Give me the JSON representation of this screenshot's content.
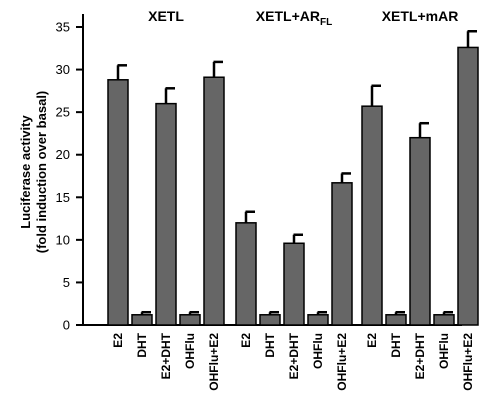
{
  "chart_data": {
    "type": "bar",
    "ylabel_line1": "Luciferase activity",
    "ylabel_line2": "(fold induction over basal)",
    "ylim": [
      0,
      35
    ],
    "yticks": [
      0,
      5,
      10,
      15,
      20,
      25,
      30,
      35
    ],
    "groups": [
      {
        "title": "XETL",
        "categories": [
          "E2",
          "DHT",
          "E2+DHT",
          "OHFlu",
          "OHFlu+E2"
        ],
        "values": [
          28.8,
          1.2,
          26.0,
          1.2,
          29.1
        ],
        "errors": [
          1.7,
          0.3,
          1.8,
          0.3,
          1.8
        ]
      },
      {
        "title": "XETL+AR",
        "title_sub": "FL",
        "categories": [
          "E2",
          "DHT",
          "E2+DHT",
          "OHFlu",
          "OHFlu+E2"
        ],
        "values": [
          12.0,
          1.2,
          9.6,
          1.2,
          16.7
        ],
        "errors": [
          1.3,
          0.3,
          1.0,
          0.3,
          1.1
        ]
      },
      {
        "title": "XETL+mAR",
        "categories": [
          "E2",
          "DHT",
          "E2+DHT",
          "OHFlu",
          "OHFlu+E2"
        ],
        "values": [
          25.7,
          1.2,
          22.0,
          1.2,
          32.6
        ],
        "errors": [
          2.4,
          0.3,
          1.7,
          0.3,
          1.9
        ]
      }
    ],
    "bar_color": "#666666",
    "grid": false
  }
}
